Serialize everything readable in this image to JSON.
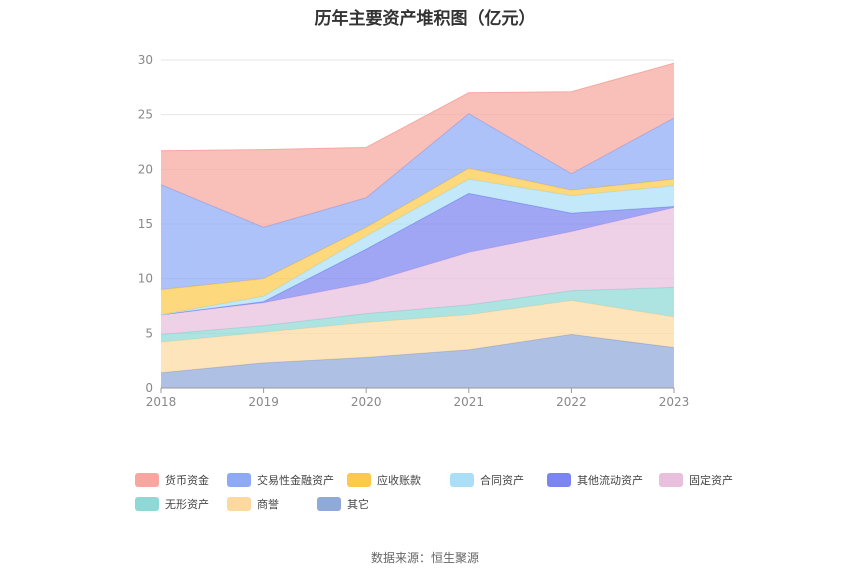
{
  "title": "历年主要资产堆积图（亿元）",
  "source": "数据来源：恒生聚源",
  "chart_data": {
    "type": "area",
    "stacked": true,
    "x": [
      "2018",
      "2019",
      "2020",
      "2021",
      "2022",
      "2023"
    ],
    "ylim": [
      0,
      30
    ],
    "yticks": [
      0,
      5,
      10,
      15,
      20,
      25,
      30
    ],
    "grid": true,
    "legend_position": "bottom",
    "series": [
      {
        "name": "其它",
        "color": "#8fa9d9",
        "values": [
          1.4,
          2.3,
          2.8,
          3.5,
          4.9,
          3.7
        ]
      },
      {
        "name": "商誉",
        "color": "#fdd9a0",
        "values": [
          2.8,
          2.8,
          3.2,
          3.2,
          3.1,
          2.8
        ]
      },
      {
        "name": "无形资产",
        "color": "#8ed8d6",
        "values": [
          0.7,
          0.6,
          0.8,
          0.9,
          0.9,
          2.7
        ]
      },
      {
        "name": "固定资产",
        "color": "#e8bfdc",
        "values": [
          1.8,
          2.1,
          2.8,
          4.8,
          5.4,
          7.3
        ]
      },
      {
        "name": "其他流动资产",
        "color": "#7b84f0",
        "values": [
          0.0,
          0.1,
          3.1,
          5.4,
          1.7,
          0.1
        ]
      },
      {
        "name": "合同资产",
        "color": "#abdff8",
        "values": [
          0.0,
          0.5,
          1.2,
          1.3,
          1.6,
          1.9
        ]
      },
      {
        "name": "应收账款",
        "color": "#fdc94a",
        "values": [
          2.3,
          1.6,
          0.8,
          1.0,
          0.5,
          0.6
        ]
      },
      {
        "name": "交易性金融资产",
        "color": "#8eaaf5",
        "values": [
          9.6,
          4.7,
          2.7,
          5.0,
          1.5,
          5.6
        ]
      },
      {
        "name": "货币资金",
        "color": "#f7a7a0",
        "values": [
          3.1,
          7.1,
          4.6,
          1.9,
          7.5,
          5.0
        ]
      }
    ]
  },
  "legend": [
    {
      "name": "货币资金",
      "color": "#f7a7a0"
    },
    {
      "name": "交易性金融资产",
      "color": "#8eaaf5"
    },
    {
      "name": "应收账款",
      "color": "#fdc94a"
    },
    {
      "name": "合同资产",
      "color": "#abdff8"
    },
    {
      "name": "其他流动资产",
      "color": "#7b84f0"
    },
    {
      "name": "固定资产",
      "color": "#e8bfdc"
    },
    {
      "name": "无形资产",
      "color": "#8ed8d6"
    },
    {
      "name": "商誉",
      "color": "#fdd9a0"
    },
    {
      "name": "其它",
      "color": "#8fa9d9"
    }
  ]
}
